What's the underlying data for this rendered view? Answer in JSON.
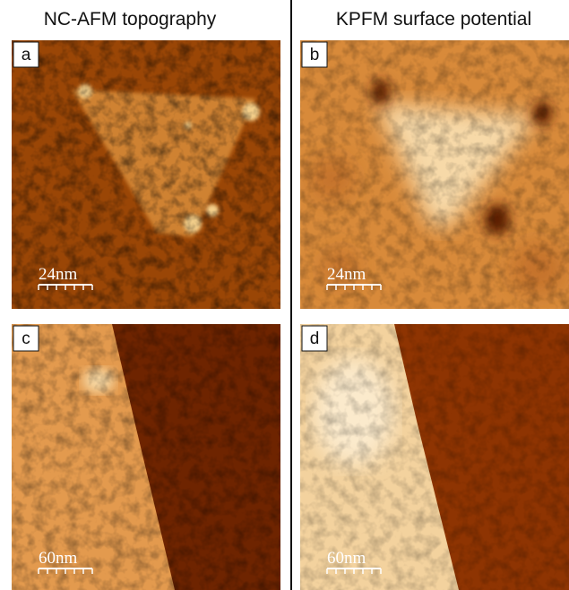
{
  "header": {
    "left": "NC-AFM topography",
    "right": "KPFM surface potential"
  },
  "panels": [
    {
      "label": "a",
      "scale": "24nm"
    },
    {
      "label": "b",
      "scale": "24nm"
    },
    {
      "label": "c",
      "scale": "60nm"
    },
    {
      "label": "d",
      "scale": "60nm"
    }
  ]
}
